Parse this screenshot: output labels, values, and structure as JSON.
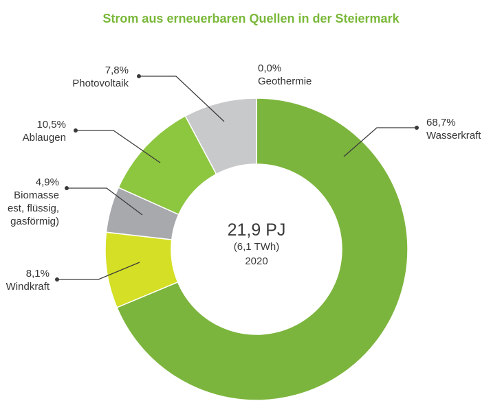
{
  "chart_data": {
    "type": "pie",
    "title": "Strom aus erneuerbaren Quellen in der Steiermark",
    "title_color": "#7ab83a",
    "center": {
      "value": "21,9 PJ",
      "sub": "(6,1 TWh)",
      "year": "2020"
    },
    "slices": [
      {
        "label_lines": [
          "Wasserkraft"
        ],
        "value": 68.7,
        "pct_label": "68,7%",
        "color": "#7cb53d"
      },
      {
        "label_lines": [
          "Windkraft"
        ],
        "value": 8.1,
        "pct_label": "8,1%",
        "color": "#d4df26"
      },
      {
        "label_lines": [
          "Biomasse",
          "est, flüssig,",
          "gasförmig)"
        ],
        "value": 4.9,
        "pct_label": "4,9%",
        "color": "#a7a9ac"
      },
      {
        "label_lines": [
          "Ablaugen"
        ],
        "value": 10.5,
        "pct_label": "10,5%",
        "color": "#8dc63f"
      },
      {
        "label_lines": [
          "Photovoltaik"
        ],
        "value": 7.8,
        "pct_label": "7,8%",
        "color": "#c8c9cb"
      },
      {
        "label_lines": [
          "Geothermie"
        ],
        "value": 0.0,
        "pct_label": "0,0%",
        "color": "#7cb53d"
      }
    ]
  }
}
